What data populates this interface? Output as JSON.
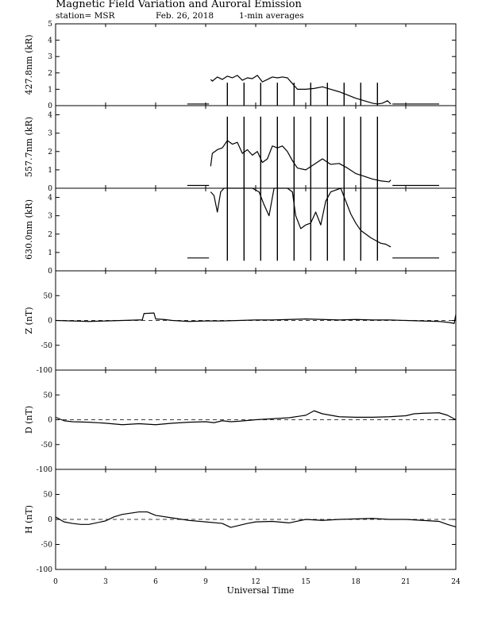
{
  "header": {
    "title": "Magnetic Field Variation and Auroral Emission",
    "station": "station= MSR",
    "date": "Feb. 26, 2018",
    "averaging": "1-min averages"
  },
  "chart_data": {
    "type": "line",
    "xlabel": "Universal Time",
    "xlim": [
      0,
      24
    ],
    "xticks": [
      0,
      3,
      6,
      9,
      12,
      15,
      18,
      21,
      24
    ],
    "panels": [
      {
        "id": "p4278",
        "ylabel": "427.8nm (kR)",
        "ylim": [
          0,
          5
        ],
        "yticks": [
          0,
          1,
          2,
          3,
          4,
          5
        ],
        "zero_dashed": false,
        "series": [
          {
            "x": [
              7.9,
              9.2
            ],
            "y": [
              0.1,
              0.1
            ]
          },
          {
            "x": [
              9.3,
              9.4,
              9.7,
              10.0,
              10.3,
              10.6,
              10.9,
              11.2,
              11.5,
              11.8,
              12.1,
              12.4,
              12.7,
              13.0,
              13.3,
              13.6,
              13.9,
              14.2,
              14.5,
              15.0,
              15.5,
              16.0,
              16.5,
              17.0,
              17.5,
              18.0,
              18.5,
              19.0,
              19.3,
              19.6,
              19.9,
              20.1
            ],
            "y": [
              1.6,
              1.5,
              1.75,
              1.6,
              1.8,
              1.7,
              1.85,
              1.55,
              1.7,
              1.65,
              1.85,
              1.45,
              1.6,
              1.75,
              1.7,
              1.75,
              1.7,
              1.35,
              1.0,
              1.0,
              1.05,
              1.15,
              1.0,
              0.85,
              0.65,
              0.45,
              0.3,
              0.15,
              0.1,
              0.15,
              0.3,
              0.1
            ]
          },
          {
            "x": [
              20.2,
              23.0
            ],
            "y": [
              0.1,
              0.1
            ]
          }
        ],
        "markers": [
          10.3,
          11.3,
          12.3,
          13.3,
          14.3,
          15.3,
          16.3,
          17.3,
          18.3,
          19.3
        ],
        "marker_range": [
          0,
          1.4
        ]
      },
      {
        "id": "p5577",
        "ylabel": "557.7nm (kR)",
        "ylim": [
          0,
          4.5
        ],
        "yticks": [
          0,
          1,
          2,
          3,
          4
        ],
        "zero_dashed": false,
        "series": [
          {
            "x": [
              7.9,
              9.2
            ],
            "y": [
              0.15,
              0.15
            ]
          },
          {
            "x": [
              9.3,
              9.4,
              9.7,
              10.0,
              10.3,
              10.6,
              10.9,
              11.2,
              11.5,
              11.8,
              12.1,
              12.4,
              12.7,
              13.0,
              13.3,
              13.6,
              13.9,
              14.2,
              14.5,
              15.0,
              15.5,
              16.0,
              16.5,
              17.0,
              17.5,
              18.0,
              18.5,
              19.0,
              19.5,
              20.0,
              20.1
            ],
            "y": [
              1.2,
              1.9,
              2.1,
              2.2,
              2.6,
              2.4,
              2.5,
              1.9,
              2.1,
              1.8,
              2.0,
              1.4,
              1.6,
              2.3,
              2.2,
              2.3,
              2.0,
              1.5,
              1.1,
              1.0,
              1.3,
              1.6,
              1.3,
              1.35,
              1.1,
              0.8,
              0.65,
              0.5,
              0.4,
              0.35,
              0.45
            ]
          },
          {
            "x": [
              20.2,
              23.0
            ],
            "y": [
              0.15,
              0.15
            ]
          }
        ],
        "markers": [
          10.3,
          11.3,
          12.3,
          13.3,
          14.3,
          15.3,
          16.3,
          17.3,
          18.3,
          19.3
        ],
        "marker_range": [
          0,
          3.9
        ]
      },
      {
        "id": "p6300",
        "ylabel": "630.0nm (kR)",
        "ylim": [
          0,
          4.5
        ],
        "yticks": [
          0,
          1,
          2,
          3,
          4
        ],
        "zero_dashed": false,
        "series": [
          {
            "x": [
              7.9,
              9.2
            ],
            "y": [
              0.7,
              0.7
            ]
          },
          {
            "x": [
              9.3,
              9.5,
              9.7,
              9.9,
              10.1,
              10.3,
              10.6,
              11.0,
              11.4,
              11.8,
              12.2,
              12.5,
              12.8,
              13.1,
              13.5,
              13.9,
              14.2,
              14.4,
              14.7,
              15.0,
              15.3,
              15.6,
              15.9,
              16.2,
              16.5,
              16.8,
              17.1,
              17.4,
              17.7,
              18.0,
              18.3,
              18.6,
              18.9,
              19.2,
              19.5,
              19.8,
              20.1
            ],
            "y": [
              4.3,
              4.1,
              3.2,
              4.3,
              4.5,
              4.5,
              4.5,
              4.5,
              4.5,
              4.5,
              4.3,
              3.6,
              3.0,
              4.5,
              4.5,
              4.5,
              4.3,
              3.0,
              2.3,
              2.5,
              2.6,
              3.2,
              2.5,
              3.8,
              4.3,
              4.4,
              4.5,
              3.8,
              3.1,
              2.6,
              2.2,
              2.0,
              1.8,
              1.65,
              1.5,
              1.45,
              1.3
            ]
          },
          {
            "x": [
              20.2,
              23.0
            ],
            "y": [
              0.7,
              0.7
            ]
          }
        ],
        "markers": [
          10.3,
          11.3,
          12.3,
          13.3,
          14.3,
          15.3,
          16.3,
          17.3,
          18.3,
          19.3
        ],
        "marker_range": [
          0.55,
          4.5
        ]
      },
      {
        "id": "pZ",
        "ylabel": "Z (nT)",
        "ylim": [
          -100,
          100
        ],
        "yticks": [
          -100,
          -50,
          0,
          50
        ],
        "zero_dashed": true,
        "series": [
          {
            "x": [
              0,
              1,
              2,
              3,
              4,
              5,
              5.2,
              5.3,
              5.9,
              6.0,
              6.5,
              7,
              8,
              9,
              10,
              11,
              12,
              13,
              14,
              15,
              16,
              17,
              18,
              19,
              20,
              21,
              22,
              23,
              23.6,
              23.9,
              24.0
            ],
            "y": [
              0,
              -1,
              -2,
              -1,
              0,
              1,
              1,
              14,
              15,
              3,
              2,
              0,
              -2,
              -1,
              -1,
              0,
              1,
              1,
              2,
              3,
              2,
              1,
              2,
              1,
              1,
              0,
              -1,
              -2,
              -4,
              -6,
              12
            ]
          }
        ]
      },
      {
        "id": "pD",
        "ylabel": "D (nT)",
        "ylim": [
          -100,
          100
        ],
        "yticks": [
          -100,
          -50,
          0,
          50
        ],
        "zero_dashed": true,
        "series": [
          {
            "x": [
              0,
              0.5,
              1,
              2,
              3,
              4,
              5,
              6,
              7,
              8,
              9,
              9.5,
              10,
              10.5,
              11,
              12,
              13,
              14,
              15,
              15.5,
              16,
              17,
              18,
              19,
              20,
              21,
              21.5,
              22,
              23,
              23.5,
              24
            ],
            "y": [
              5,
              -2,
              -4,
              -5,
              -7,
              -10,
              -8,
              -10,
              -7,
              -5,
              -4,
              -6,
              -2,
              -4,
              -3,
              0,
              2,
              4,
              9,
              18,
              12,
              6,
              5,
              5,
              6,
              8,
              12,
              13,
              14,
              9,
              0
            ]
          }
        ]
      },
      {
        "id": "pH",
        "ylabel": "H (nT)",
        "ylim": [
          -100,
          100
        ],
        "yticks": [
          -100,
          -50,
          0,
          50
        ],
        "zero_dashed": true,
        "series": [
          {
            "x": [
              0,
              0.5,
              1,
              1.5,
              2,
              3,
              3.5,
              4,
              5,
              5.5,
              6,
              7,
              8,
              9,
              10,
              10.5,
              11,
              11.5,
              12,
              13,
              14,
              15,
              16,
              17,
              18,
              19,
              20,
              21,
              22,
              23,
              23.5,
              24
            ],
            "y": [
              5,
              -5,
              -8,
              -10,
              -10,
              -3,
              5,
              10,
              15,
              15,
              8,
              3,
              -2,
              -5,
              -8,
              -16,
              -12,
              -8,
              -5,
              -4,
              -7,
              0,
              -2,
              0,
              1,
              2,
              0,
              0,
              -2,
              -4,
              -10,
              -15
            ]
          }
        ]
      }
    ]
  }
}
